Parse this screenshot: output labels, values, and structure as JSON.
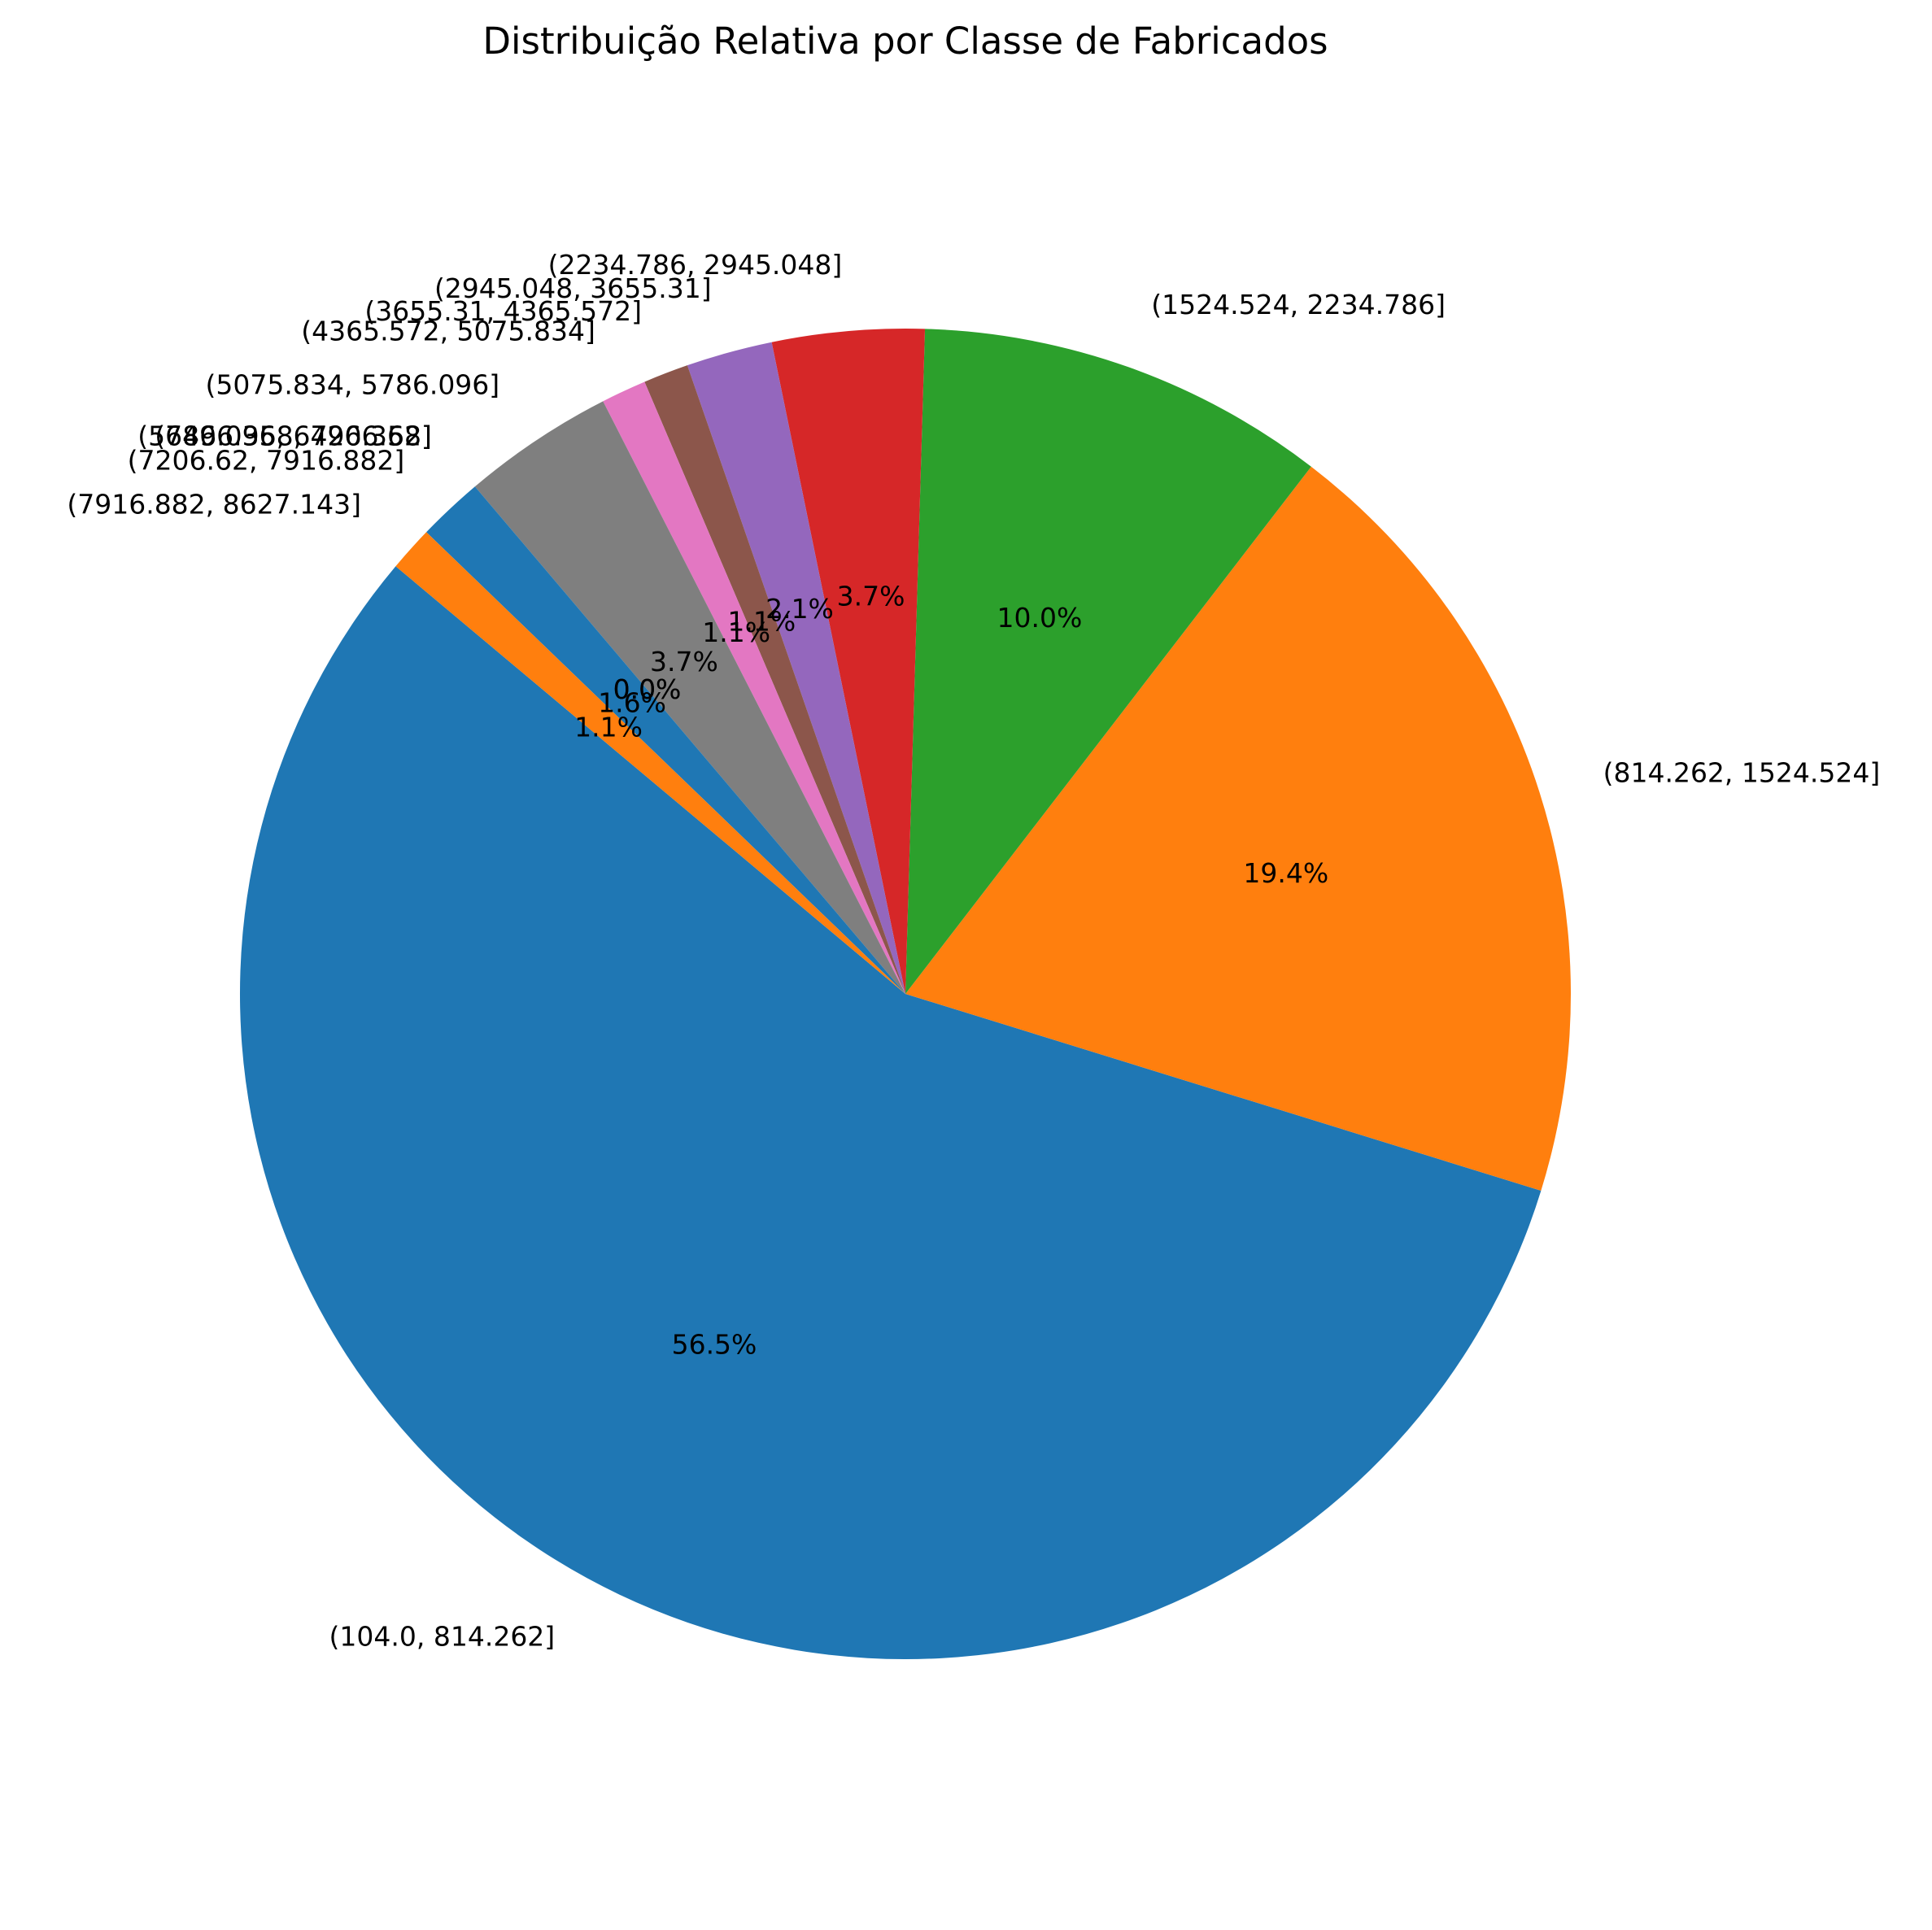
{
  "chart_data": {
    "type": "pie",
    "title": "Distribuição Relativa por Classe de Fabricados",
    "categories": [
      "(104.0, 814.262]",
      "(814.262, 1524.524]",
      "(1524.524, 2234.786]",
      "(2234.786, 2945.048]",
      "(2945.048, 3655.31]",
      "(3655.31, 4365.572]",
      "(4365.572, 5075.834]",
      "(5075.834, 5786.096]",
      "(5786.096, 6496.358]",
      "(6496.358, 7206.62]",
      "(7206.62, 7916.882]",
      "(7916.882, 8627.143]"
    ],
    "values": [
      56.5,
      19.4,
      10.0,
      3.7,
      2.1,
      1.1,
      1.1,
      3.7,
      0.0,
      0.0,
      1.6,
      1.1
    ],
    "percent_labels": [
      "56.5%",
      "19.4%",
      "10.0%",
      "3.7%",
      "2.1%",
      "1.1%",
      "1.1%",
      "3.7%",
      "0.0%",
      "0.0%",
      "1.6%",
      "1.1%"
    ],
    "colors": [
      "#1f77b4",
      "#ff7f0e",
      "#2ca02c",
      "#d62728",
      "#9467bd",
      "#8c564b",
      "#e377c2",
      "#7f7f7f",
      "#bcbd22",
      "#17becf",
      "#1f77b4",
      "#ff7f0e"
    ],
    "start_angle_deg": 140,
    "direction": "counterclockwise",
    "legend": "none"
  }
}
